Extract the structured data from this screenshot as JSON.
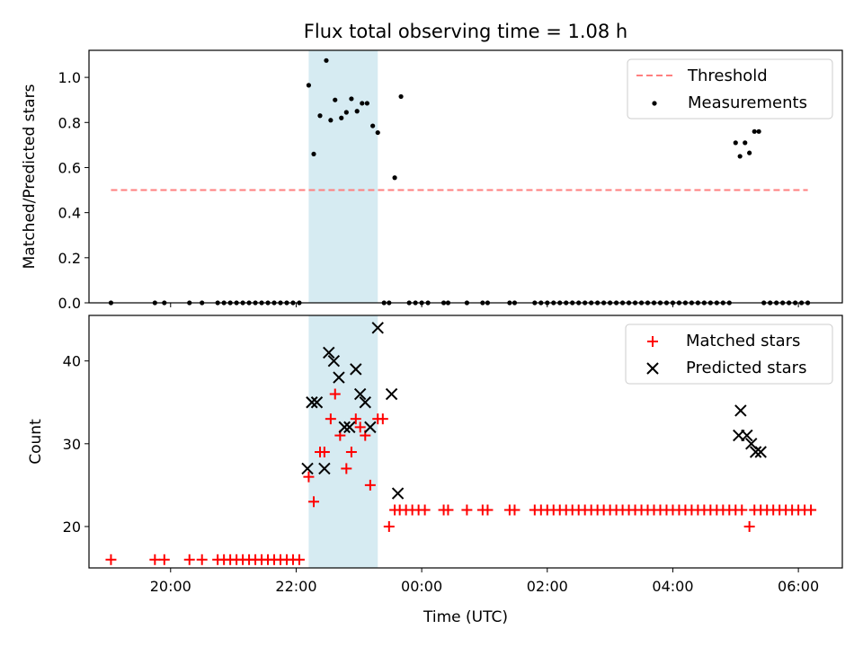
{
  "chart_data": [
    {
      "type": "scatter",
      "title": "Flux total observing time = 1.08 h",
      "xlabel": "",
      "ylabel": "Matched/Predicted stars",
      "ylim": [
        0,
        1.12
      ],
      "yticks": [
        0.0,
        0.2,
        0.4,
        0.6,
        0.8,
        1.0
      ],
      "ytick_labels": [
        "0.0",
        "0.2",
        "0.4",
        "0.6",
        "0.8",
        "1.0"
      ],
      "grid": false,
      "legend_position": "top-right",
      "shaded_interval_hours": [
        22.2,
        23.3
      ],
      "colors": {
        "threshold": "#ff7f7f",
        "measurements": "#000000",
        "shade": "#add8e6"
      },
      "threshold": {
        "name": "Threshold",
        "value": 0.5,
        "x_range_hours": [
          19.05,
          30.15
        ]
      },
      "measurements": {
        "name": "Measurements",
        "points": [
          [
            19.05,
            0
          ],
          [
            19.75,
            0
          ],
          [
            19.9,
            0
          ],
          [
            20.3,
            0
          ],
          [
            20.5,
            0
          ],
          [
            20.75,
            0
          ],
          [
            20.85,
            0
          ],
          [
            20.95,
            0
          ],
          [
            21.05,
            0
          ],
          [
            21.15,
            0
          ],
          [
            21.25,
            0
          ],
          [
            21.35,
            0
          ],
          [
            21.45,
            0
          ],
          [
            21.55,
            0
          ],
          [
            21.65,
            0
          ],
          [
            21.75,
            0
          ],
          [
            21.85,
            0
          ],
          [
            21.95,
            0
          ],
          [
            22.05,
            0
          ],
          [
            22.2,
            0.965
          ],
          [
            22.28,
            0.66
          ],
          [
            22.38,
            0.83
          ],
          [
            22.48,
            1.075
          ],
          [
            22.55,
            0.81
          ],
          [
            22.62,
            0.9
          ],
          [
            22.72,
            0.82
          ],
          [
            22.8,
            0.845
          ],
          [
            22.88,
            0.905
          ],
          [
            22.97,
            0.85
          ],
          [
            23.05,
            0.885
          ],
          [
            23.13,
            0.885
          ],
          [
            23.22,
            0.785
          ],
          [
            23.3,
            0.755
          ],
          [
            23.4,
            0
          ],
          [
            23.48,
            0
          ],
          [
            23.57,
            0.555
          ],
          [
            23.67,
            0.915
          ],
          [
            23.8,
            0
          ],
          [
            23.9,
            0
          ],
          [
            24.0,
            0
          ],
          [
            24.1,
            0
          ],
          [
            24.35,
            0
          ],
          [
            24.42,
            0
          ],
          [
            24.72,
            0
          ],
          [
            24.97,
            0
          ],
          [
            25.05,
            0
          ],
          [
            25.4,
            0
          ],
          [
            25.48,
            0
          ],
          [
            25.8,
            0
          ],
          [
            25.9,
            0
          ],
          [
            26.0,
            0
          ],
          [
            26.1,
            0
          ],
          [
            26.2,
            0
          ],
          [
            26.3,
            0
          ],
          [
            26.4,
            0
          ],
          [
            26.5,
            0
          ],
          [
            26.6,
            0
          ],
          [
            26.7,
            0
          ],
          [
            26.8,
            0
          ],
          [
            26.9,
            0
          ],
          [
            27.0,
            0
          ],
          [
            27.1,
            0
          ],
          [
            27.2,
            0
          ],
          [
            27.3,
            0
          ],
          [
            27.4,
            0
          ],
          [
            27.5,
            0
          ],
          [
            27.6,
            0
          ],
          [
            27.7,
            0
          ],
          [
            27.8,
            0
          ],
          [
            27.9,
            0
          ],
          [
            28.0,
            0
          ],
          [
            28.1,
            0
          ],
          [
            28.2,
            0
          ],
          [
            28.3,
            0
          ],
          [
            28.4,
            0
          ],
          [
            28.5,
            0
          ],
          [
            28.6,
            0
          ],
          [
            28.7,
            0
          ],
          [
            28.8,
            0
          ],
          [
            28.9,
            0
          ],
          [
            29.0,
            0.71
          ],
          [
            29.07,
            0.65
          ],
          [
            29.15,
            0.71
          ],
          [
            29.22,
            0.665
          ],
          [
            29.3,
            0.76
          ],
          [
            29.37,
            0.76
          ],
          [
            29.45,
            0
          ],
          [
            29.55,
            0
          ],
          [
            29.65,
            0
          ],
          [
            29.75,
            0
          ],
          [
            29.85,
            0
          ],
          [
            29.95,
            0
          ],
          [
            30.05,
            0
          ],
          [
            30.15,
            0
          ]
        ]
      }
    },
    {
      "type": "scatter",
      "title": "",
      "xlabel": "Time (UTC)",
      "ylabel": "Count",
      "xlim_hours": [
        18.7,
        30.7
      ],
      "ylim": [
        15,
        45.5
      ],
      "yticks": [
        20,
        30,
        40
      ],
      "ytick_labels": [
        "20",
        "30",
        "40"
      ],
      "xticks_hours": [
        20,
        22,
        24,
        26,
        28,
        30
      ],
      "xtick_labels": [
        "20:00",
        "22:00",
        "00:00",
        "02:00",
        "04:00",
        "06:00"
      ],
      "grid": false,
      "legend_position": "top-right",
      "shaded_interval_hours": [
        22.2,
        23.3
      ],
      "colors": {
        "matched": "#ff0000",
        "predicted": "#000000",
        "shade": "#add8e6"
      },
      "series": [
        {
          "name": "Matched stars",
          "marker": "plus",
          "points": [
            [
              19.05,
              16
            ],
            [
              19.75,
              16
            ],
            [
              19.9,
              16
            ],
            [
              20.3,
              16
            ],
            [
              20.5,
              16
            ],
            [
              20.75,
              16
            ],
            [
              20.85,
              16
            ],
            [
              20.95,
              16
            ],
            [
              21.05,
              16
            ],
            [
              21.15,
              16
            ],
            [
              21.25,
              16
            ],
            [
              21.35,
              16
            ],
            [
              21.45,
              16
            ],
            [
              21.55,
              16
            ],
            [
              21.65,
              16
            ],
            [
              21.75,
              16
            ],
            [
              21.85,
              16
            ],
            [
              21.95,
              16
            ],
            [
              22.05,
              16
            ],
            [
              22.2,
              26
            ],
            [
              22.28,
              23
            ],
            [
              22.38,
              29
            ],
            [
              22.45,
              29
            ],
            [
              22.55,
              33
            ],
            [
              22.62,
              36
            ],
            [
              22.7,
              31
            ],
            [
              22.8,
              27
            ],
            [
              22.88,
              29
            ],
            [
              22.95,
              33
            ],
            [
              23.02,
              32
            ],
            [
              23.1,
              31
            ],
            [
              23.18,
              25
            ],
            [
              23.3,
              33
            ],
            [
              23.38,
              33
            ],
            [
              23.48,
              20
            ],
            [
              23.57,
              22
            ],
            [
              23.65,
              22
            ],
            [
              23.75,
              22
            ],
            [
              23.85,
              22
            ],
            [
              23.95,
              22
            ],
            [
              24.05,
              22
            ],
            [
              24.35,
              22
            ],
            [
              24.42,
              22
            ],
            [
              24.72,
              22
            ],
            [
              24.97,
              22
            ],
            [
              25.05,
              22
            ],
            [
              25.4,
              22
            ],
            [
              25.48,
              22
            ],
            [
              25.8,
              22
            ],
            [
              25.9,
              22
            ],
            [
              26.0,
              22
            ],
            [
              26.1,
              22
            ],
            [
              26.2,
              22
            ],
            [
              26.3,
              22
            ],
            [
              26.4,
              22
            ],
            [
              26.5,
              22
            ],
            [
              26.6,
              22
            ],
            [
              26.7,
              22
            ],
            [
              26.8,
              22
            ],
            [
              26.9,
              22
            ],
            [
              27.0,
              22
            ],
            [
              27.1,
              22
            ],
            [
              27.2,
              22
            ],
            [
              27.3,
              22
            ],
            [
              27.4,
              22
            ],
            [
              27.5,
              22
            ],
            [
              27.6,
              22
            ],
            [
              27.7,
              22
            ],
            [
              27.8,
              22
            ],
            [
              27.9,
              22
            ],
            [
              28.0,
              22
            ],
            [
              28.1,
              22
            ],
            [
              28.2,
              22
            ],
            [
              28.3,
              22
            ],
            [
              28.4,
              22
            ],
            [
              28.5,
              22
            ],
            [
              28.6,
              22
            ],
            [
              28.7,
              22
            ],
            [
              28.8,
              22
            ],
            [
              28.9,
              22
            ],
            [
              29.0,
              22
            ],
            [
              29.1,
              22
            ],
            [
              29.22,
              20
            ],
            [
              29.3,
              22
            ],
            [
              29.4,
              22
            ],
            [
              29.5,
              22
            ],
            [
              29.6,
              22
            ],
            [
              29.7,
              22
            ],
            [
              29.8,
              22
            ],
            [
              29.9,
              22
            ],
            [
              30.0,
              22
            ],
            [
              30.1,
              22
            ],
            [
              30.2,
              22
            ]
          ]
        },
        {
          "name": "Predicted stars",
          "marker": "x",
          "points": [
            [
              22.18,
              27
            ],
            [
              22.25,
              35
            ],
            [
              22.33,
              35
            ],
            [
              22.45,
              27
            ],
            [
              22.52,
              41
            ],
            [
              22.6,
              40
            ],
            [
              22.68,
              38
            ],
            [
              22.77,
              32
            ],
            [
              22.85,
              32
            ],
            [
              22.95,
              39
            ],
            [
              23.02,
              36
            ],
            [
              23.1,
              35
            ],
            [
              23.18,
              32
            ],
            [
              23.3,
              44
            ],
            [
              23.52,
              36
            ],
            [
              23.62,
              24
            ],
            [
              29.05,
              31
            ],
            [
              29.08,
              34
            ],
            [
              29.18,
              31
            ],
            [
              29.25,
              30
            ],
            [
              29.32,
              29
            ],
            [
              29.4,
              29
            ]
          ]
        }
      ]
    }
  ]
}
